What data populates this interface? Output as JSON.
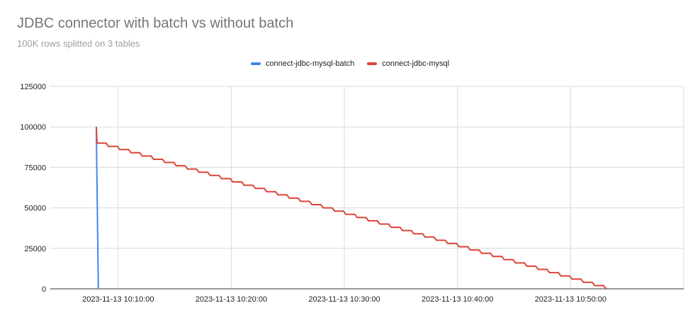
{
  "chart_data": {
    "type": "line",
    "title": "JDBC connector with batch vs without batch",
    "subtitle": "100K rows splitted on 3 tables",
    "xlabel": "",
    "ylabel": "",
    "ylim": [
      0,
      125000
    ],
    "y_ticks": [
      "0",
      "25000",
      "50000",
      "75000",
      "100000",
      "125000"
    ],
    "xlim": [
      "2023-11-13 10:04:00",
      "2023-11-13 11:00:00"
    ],
    "x_ticks": [
      "2023-11-13 10:10:00",
      "2023-11-13 10:20:00",
      "2023-11-13 10:30:00",
      "2023-11-13 10:40:00",
      "2023-11-13 10:50:00"
    ],
    "grid": true,
    "legend": "top",
    "series": [
      {
        "name": "connect-jdbc-mysql-batch",
        "color": "#4285f4",
        "x": [
          "2023-11-13 10:08:04",
          "2023-11-13 10:08:15"
        ],
        "y": [
          100000,
          0
        ]
      },
      {
        "name": "connect-jdbc-mysql",
        "color": "#db4437",
        "step": {
          "start": "2023-11-13 10:08:04",
          "y_start": 100000,
          "first_value": 90000,
          "decrement": 2000,
          "interval_seconds": 60,
          "transition_seconds": 13,
          "end_value": 0
        }
      }
    ]
  }
}
